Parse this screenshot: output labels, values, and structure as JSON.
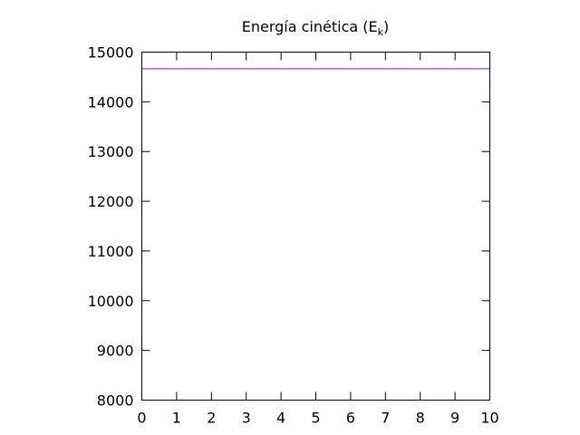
{
  "chart_data": {
    "type": "line",
    "title": {
      "main": "Energía cinética (E",
      "subscript": "k",
      "close": ")"
    },
    "xlabel": "",
    "ylabel": "",
    "xlim": [
      0,
      10
    ],
    "ylim": [
      8000,
      15000
    ],
    "x_ticks": [
      "0",
      "1",
      "2",
      "3",
      "4",
      "5",
      "6",
      "7",
      "8",
      "9",
      "10"
    ],
    "y_ticks": [
      "8000",
      "9000",
      "10000",
      "11000",
      "12000",
      "13000",
      "14000",
      "15000"
    ],
    "grid": false,
    "legend": "none",
    "series": [
      {
        "color": "#9400d3",
        "x": [
          0,
          10
        ],
        "y": [
          14665,
          14665
        ]
      }
    ]
  }
}
